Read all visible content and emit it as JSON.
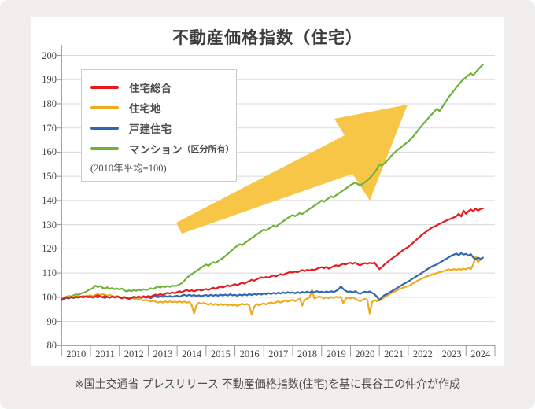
{
  "page": {
    "background": "#f1efed",
    "card_background": "#ffffff"
  },
  "chart": {
    "title": "不動産価格指数（住宅）",
    "y_axis": {
      "min": 80,
      "max": 200,
      "step": 10,
      "ticks": [
        80,
        90,
        100,
        110,
        120,
        130,
        140,
        150,
        160,
        170,
        180,
        190,
        200
      ]
    },
    "x_axis": {
      "years": [
        "2010",
        "2011",
        "2012",
        "2013",
        "2014",
        "2015",
        "2016",
        "2017",
        "2018",
        "2019",
        "2020",
        "2021",
        "2022",
        "2023",
        "2024"
      ]
    },
    "legend": {
      "items": [
        {
          "key": "composite",
          "label": "住宅総合",
          "suffix": "",
          "color": "#e61b1e"
        },
        {
          "key": "land",
          "label": "住宅地",
          "suffix": "",
          "color": "#edab1e"
        },
        {
          "key": "detached",
          "label": "戸建住宅",
          "suffix": "",
          "color": "#2f68ae"
        },
        {
          "key": "condo",
          "label": "マンション",
          "suffix": "（区分所有）",
          "color": "#70b13a"
        }
      ],
      "note": "(2010年平均=100)"
    },
    "colors": {
      "grid": "#d9d9d9",
      "axis": "#999999",
      "tick": "#999999",
      "arrow": "#f8c440",
      "label_text": "#444444"
    }
  },
  "chart_data": {
    "type": "line",
    "title": "不動産価格指数（住宅）",
    "note": "2010年平均=100",
    "x_start": "2010-01",
    "x_interval": "monthly",
    "xlabel": "",
    "ylabel": "",
    "ylim": [
      80,
      200
    ],
    "grid": "horizontal",
    "legend_position": "upper-left",
    "annotation": {
      "shape": "rising-arrow",
      "color": "#f8c440",
      "tail": [
        228,
        289
      ],
      "tip": [
        518,
        133
      ]
    },
    "series": [
      {
        "key": "composite",
        "name": "住宅総合",
        "color": "#e61b1e",
        "values": [
          99.2,
          99.6,
          100.0,
          99.7,
          100.1,
          99.8,
          100.2,
          99.9,
          100.3,
          100.0,
          100.4,
          100.1,
          100.3,
          99.9,
          100.4,
          100.8,
          100.4,
          100.0,
          100.5,
          100.1,
          99.8,
          100.2,
          99.9,
          100.3,
          100.0,
          99.6,
          100.1,
          99.7,
          99.4,
          99.8,
          100.2,
          99.9,
          100.3,
          99.9,
          100.4,
          100.1,
          100.5,
          100.2,
          100.7,
          101.1,
          100.8,
          101.3,
          100.9,
          101.4,
          101.8,
          101.5,
          102.0,
          101.6,
          102.1,
          102.5,
          102.0,
          102.6,
          103.0,
          102.5,
          102.9,
          102.4,
          102.8,
          103.2,
          102.7,
          103.1,
          103.4,
          103.0,
          103.5,
          103.9,
          103.5,
          104.0,
          104.4,
          104.0,
          104.5,
          104.9,
          104.5,
          105.0,
          105.4,
          105.0,
          105.5,
          106.0,
          105.6,
          106.2,
          106.7,
          107.2,
          106.8,
          107.4,
          107.9,
          108.2,
          108.0,
          108.4,
          108.1,
          108.6,
          109.0,
          108.6,
          109.1,
          109.5,
          109.2,
          109.7,
          110.1,
          110.4,
          110.2,
          110.6,
          110.3,
          110.8,
          111.2,
          110.8,
          111.3,
          111.0,
          111.5,
          111.2,
          111.7,
          112.1,
          112.4,
          112.0,
          112.5,
          111.8,
          112.3,
          112.8,
          113.2,
          112.9,
          113.4,
          113.8,
          113.5,
          114.0,
          114.2,
          113.8,
          114.3,
          113.6,
          113.2,
          113.7,
          114.1,
          113.8,
          114.2,
          113.9,
          114.3,
          113.0,
          111.6,
          112.4,
          113.4,
          114.2,
          115.0,
          115.8,
          116.5,
          117.2,
          118.0,
          118.8,
          119.6,
          120.2,
          120.8,
          121.6,
          122.5,
          123.4,
          124.3,
          125.2,
          126.0,
          126.8,
          127.5,
          128.2,
          128.9,
          129.3,
          129.8,
          130.3,
          130.8,
          131.3,
          131.8,
          132.2,
          132.6,
          133.0,
          133.5,
          134.5,
          133.4,
          135.8,
          134.5,
          135.5,
          136.3,
          135.6,
          136.6,
          135.8,
          136.5,
          136.7
        ]
      },
      {
        "key": "land",
        "name": "住宅地",
        "color": "#edab1e",
        "values": [
          99.0,
          99.5,
          100.0,
          100.3,
          99.9,
          100.4,
          100.1,
          100.5,
          100.2,
          100.6,
          100.3,
          100.6,
          100.8,
          100.4,
          100.9,
          101.3,
          100.9,
          101.4,
          101.0,
          100.6,
          101.0,
          100.6,
          100.2,
          100.5,
          100.2,
          99.8,
          100.2,
          99.8,
          99.4,
          99.8,
          99.4,
          99.0,
          99.4,
          99.0,
          98.6,
          98.9,
          98.6,
          98.2,
          98.6,
          98.2,
          97.8,
          98.2,
          97.8,
          98.3,
          97.9,
          98.3,
          97.9,
          98.2,
          97.9,
          98.3,
          97.8,
          98.2,
          97.7,
          98.1,
          96.9,
          93.3,
          96.5,
          97.7,
          97.2,
          97.6,
          97.3,
          96.9,
          97.4,
          96.8,
          97.3,
          96.7,
          97.2,
          96.7,
          97.1,
          96.6,
          97.0,
          96.6,
          96.9,
          96.4,
          96.9,
          97.3,
          96.8,
          97.2,
          96.6,
          92.7,
          96.0,
          97.1,
          96.7,
          97.1,
          97.4,
          97.0,
          97.5,
          97.9,
          97.4,
          97.9,
          98.3,
          97.8,
          98.3,
          98.7,
          98.2,
          98.6,
          98.9,
          98.4,
          98.9,
          99.4,
          96.5,
          98.9,
          99.4,
          99.9,
          103.0,
          99.5,
          99.9,
          100.3,
          100.0,
          99.5,
          100.0,
          99.6,
          100.1,
          99.7,
          100.2,
          99.8,
          100.2,
          97.6,
          99.4,
          99.8,
          99.5,
          99.9,
          99.4,
          98.8,
          98.4,
          98.9,
          99.3,
          98.9,
          93.3,
          98.0,
          98.8,
          98.4,
          98.6,
          99.2,
          99.9,
          100.5,
          101.1,
          101.7,
          102.2,
          102.7,
          103.2,
          103.6,
          104.0,
          104.3,
          104.6,
          105.1,
          105.7,
          106.3,
          106.9,
          107.4,
          107.9,
          108.3,
          108.7,
          109.0,
          109.4,
          109.7,
          110.0,
          110.3,
          110.6,
          110.9,
          111.2,
          111.5,
          111.2,
          111.6,
          111.3,
          111.7,
          111.4,
          111.8,
          111.5,
          112.2,
          111.6,
          113.5,
          116.8,
          114.5,
          115.5,
          116.3
        ]
      },
      {
        "key": "detached",
        "name": "戸建住宅",
        "color": "#2f68ae",
        "values": [
          98.8,
          99.3,
          99.8,
          99.5,
          100.0,
          99.7,
          100.1,
          99.8,
          100.2,
          99.9,
          100.3,
          100.0,
          100.2,
          99.8,
          100.3,
          99.9,
          100.4,
          100.0,
          99.7,
          100.1,
          99.8,
          100.2,
          99.9,
          100.2,
          99.9,
          99.5,
          100.0,
          99.6,
          99.3,
          99.7,
          100.1,
          99.8,
          100.2,
          99.8,
          100.1,
          99.8,
          100.0,
          99.6,
          100.1,
          100.4,
          100.0,
          100.4,
          100.1,
          100.5,
          100.2,
          100.5,
          100.1,
          100.4,
          100.6,
          100.2,
          100.7,
          101.0,
          100.6,
          101.0,
          100.6,
          100.9,
          100.5,
          100.8,
          100.4,
          100.7,
          100.9,
          100.5,
          101.0,
          100.6,
          101.0,
          100.6,
          101.1,
          100.7,
          101.1,
          100.7,
          101.2,
          100.8,
          101.0,
          100.6,
          101.1,
          100.7,
          101.2,
          100.8,
          101.3,
          100.9,
          101.4,
          101.0,
          101.5,
          101.1,
          101.6,
          101.2,
          101.7,
          101.3,
          101.8,
          101.4,
          101.9,
          101.5,
          102.0,
          101.6,
          102.1,
          101.7,
          102.0,
          101.6,
          102.1,
          101.7,
          102.2,
          101.8,
          102.3,
          101.9,
          102.4,
          102.0,
          102.5,
          102.1,
          102.3,
          101.9,
          102.4,
          102.0,
          102.5,
          102.1,
          102.6,
          103.2,
          104.5,
          103.4,
          102.6,
          102.2,
          102.4,
          102.0,
          102.5,
          101.8,
          101.4,
          101.9,
          102.3,
          102.0,
          102.4,
          101.8,
          101.2,
          100.2,
          98.8,
          99.8,
          100.8,
          101.2,
          101.8,
          102.4,
          103.0,
          103.6,
          104.2,
          104.8,
          105.4,
          106.0,
          106.5,
          107.1,
          107.8,
          108.4,
          109.0,
          109.6,
          110.3,
          110.9,
          111.6,
          112.2,
          112.8,
          113.2,
          113.6,
          114.2,
          114.8,
          115.4,
          116.0,
          116.6,
          117.2,
          117.6,
          118.0,
          117.4,
          118.2,
          117.6,
          117.9,
          117.2,
          117.8,
          116.4,
          115.6,
          116.4,
          115.8,
          116.3
        ]
      },
      {
        "key": "condo",
        "name": "マンション（区分所有）",
        "color": "#70b13a",
        "values": [
          99.0,
          99.6,
          100.2,
          100.5,
          100.3,
          100.8,
          101.2,
          101.0,
          101.5,
          101.8,
          102.2,
          102.8,
          103.3,
          103.8,
          104.8,
          104.2,
          104.6,
          103.9,
          103.6,
          104.1,
          103.5,
          103.8,
          103.3,
          103.6,
          103.2,
          103.6,
          102.9,
          102.4,
          102.8,
          102.5,
          103.0,
          102.6,
          103.1,
          102.8,
          103.3,
          103.0,
          103.2,
          103.7,
          103.4,
          103.9,
          104.4,
          104.0,
          104.5,
          104.2,
          104.6,
          104.3,
          104.8,
          104.6,
          104.8,
          105.3,
          105.8,
          106.8,
          108.0,
          108.8,
          109.5,
          110.2,
          110.8,
          111.5,
          112.2,
          112.9,
          113.5,
          113.0,
          113.8,
          114.5,
          114.1,
          114.9,
          115.6,
          116.2,
          117.0,
          117.9,
          118.8,
          119.6,
          120.6,
          121.2,
          121.9,
          121.5,
          122.3,
          123.0,
          123.8,
          124.5,
          125.2,
          125.9,
          126.6,
          127.3,
          128.0,
          127.6,
          128.3,
          128.9,
          129.6,
          129.2,
          129.9,
          130.6,
          131.4,
          132.1,
          132.8,
          133.4,
          134.0,
          133.5,
          134.2,
          134.8,
          134.4,
          135.1,
          135.8,
          136.5,
          137.2,
          137.8,
          138.5,
          139.2,
          140.0,
          139.5,
          140.3,
          141.0,
          141.7,
          141.3,
          142.1,
          142.8,
          143.5,
          144.2,
          144.9,
          145.6,
          146.3,
          146.9,
          147.4,
          146.8,
          146.2,
          146.8,
          147.5,
          148.3,
          149.2,
          150.3,
          151.5,
          153.0,
          155.0,
          154.4,
          155.3,
          156.2,
          157.3,
          158.5,
          159.5,
          160.4,
          161.2,
          162.0,
          162.8,
          163.6,
          164.4,
          165.3,
          166.4,
          167.6,
          168.9,
          170.2,
          171.4,
          172.5,
          173.6,
          174.8,
          175.9,
          177.0,
          178.0,
          177.0,
          178.5,
          180.0,
          181.5,
          183.0,
          184.3,
          185.5,
          186.8,
          188.0,
          189.2,
          190.2,
          191.0,
          191.8,
          192.6,
          191.8,
          193.0,
          194.2,
          195.2,
          196.2
        ]
      }
    ]
  },
  "footer": {
    "note": "※国土交通省 プレスリリース 不動産価格指数(住宅)を基に長谷工の仲介が作成"
  }
}
